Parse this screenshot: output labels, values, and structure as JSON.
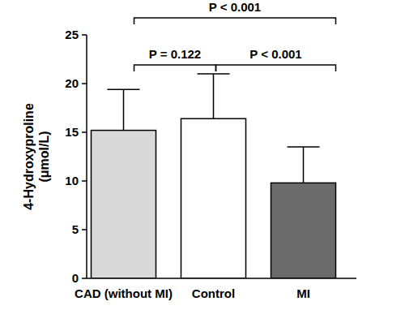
{
  "chart_data": {
    "type": "bar",
    "y_label": "4-Hydroxyproline (μmol/L)",
    "categories": [
      "CAD (without MI)",
      "Control",
      "MI"
    ],
    "values": [
      15.2,
      16.4,
      9.8
    ],
    "errors": [
      4.2,
      4.6,
      3.7
    ],
    "colors": [
      "#d9d9d9",
      "#ffffff",
      "#6b6b6b"
    ],
    "ylim": [
      0,
      25
    ],
    "yticks": [
      0,
      5,
      10,
      15,
      20,
      25
    ],
    "grid": false,
    "comparisons": [
      {
        "groups": [
          "CAD (without MI)",
          "Control"
        ],
        "label": "P = 0.122"
      },
      {
        "groups": [
          "Control",
          "MI"
        ],
        "label": "P < 0.001"
      },
      {
        "groups": [
          "CAD (without MI)",
          "MI"
        ],
        "label": "P < 0.001"
      }
    ]
  }
}
